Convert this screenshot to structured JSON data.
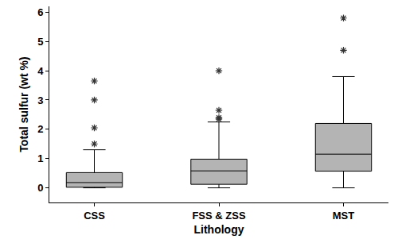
{
  "chart_data": {
    "type": "box",
    "x_label": "Lithology",
    "y_label": "Total sulfur (wt %)",
    "categories": [
      "CSS",
      "FSS & ZSS",
      "MST"
    ],
    "whisker_low": [
      0,
      0,
      0
    ],
    "q1": [
      0.02,
      0.12,
      0.57
    ],
    "median": [
      0.18,
      0.58,
      1.15
    ],
    "q3": [
      0.52,
      0.98,
      2.2
    ],
    "whisker_high": [
      1.3,
      2.25,
      3.8
    ],
    "outliers": [
      [
        1.5,
        2.05,
        3.0,
        3.65
      ],
      [
        2.35,
        2.4,
        2.65,
        4.0
      ],
      [
        4.7,
        5.8
      ]
    ],
    "color": "#b4b4b4",
    "marker": "asterisk",
    "ylim": [
      -0.5,
      6.2
    ],
    "yticks": [
      0,
      1,
      2,
      3,
      4,
      5,
      6
    ],
    "grid": false
  }
}
